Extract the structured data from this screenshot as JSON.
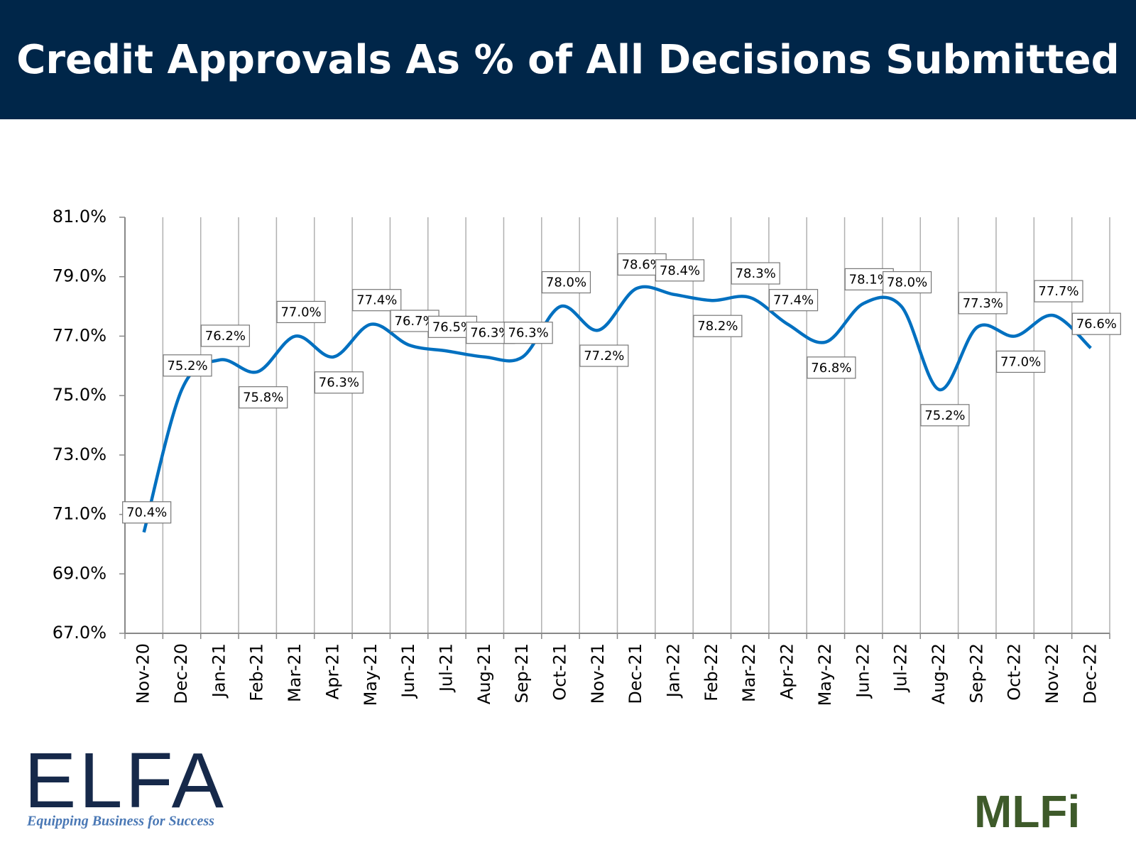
{
  "header": {
    "title": "Credit Approvals As % of All Decisions Submitted"
  },
  "chart_data": {
    "type": "line",
    "categories": [
      "Nov-20",
      "Dec-20",
      "Jan-21",
      "Feb-21",
      "Mar-21",
      "Apr-21",
      "May-21",
      "Jun-21",
      "Jul-21",
      "Aug-21",
      "Sep-21",
      "Oct-21",
      "Nov-21",
      "Dec-21",
      "Jan-22",
      "Feb-22",
      "Mar-22",
      "Apr-22",
      "May-22",
      "Jun-22",
      "Jul-22",
      "Aug-22",
      "Sep-22",
      "Oct-22",
      "Nov-22",
      "Dec-22"
    ],
    "values": [
      70.4,
      75.2,
      76.2,
      75.8,
      77.0,
      76.3,
      77.4,
      76.7,
      76.5,
      76.3,
      76.3,
      78.0,
      77.2,
      78.6,
      78.4,
      78.2,
      78.3,
      77.4,
      76.8,
      78.1,
      78.0,
      75.2,
      77.3,
      77.0,
      77.7,
      76.6
    ],
    "value_labels": [
      "70.4%",
      "75.2%",
      "76.2%",
      "75.8%",
      "77.0%",
      "76.3%",
      "77.4%",
      "76.7%",
      "76.5%",
      "76.3%",
      "76.3%",
      "78.0%",
      "77.2%",
      "78.6%",
      "78.4%",
      "78.2%",
      "78.3%",
      "77.4%",
      "76.8%",
      "78.1%",
      "78.0%",
      "75.2%",
      "77.3%",
      "77.0%",
      "77.7%",
      "76.6%"
    ],
    "color": "#0070c0",
    "ylim": [
      67,
      81
    ],
    "yticks": [
      {
        "value": 67,
        "label": "67.0%"
      },
      {
        "value": 69,
        "label": "69.0%"
      },
      {
        "value": 71,
        "label": "71.0%"
      },
      {
        "value": 73,
        "label": "73.0%"
      },
      {
        "value": 75,
        "label": "75.0%"
      },
      {
        "value": 77,
        "label": "77.0%"
      },
      {
        "value": 79,
        "label": "79.0%"
      },
      {
        "value": 81,
        "label": "81.0%"
      }
    ],
    "grid": true
  },
  "logos": {
    "elfa": {
      "name": "ELFA",
      "tagline": "Equipping Business for Success"
    },
    "mlfi": "MLFi"
  }
}
